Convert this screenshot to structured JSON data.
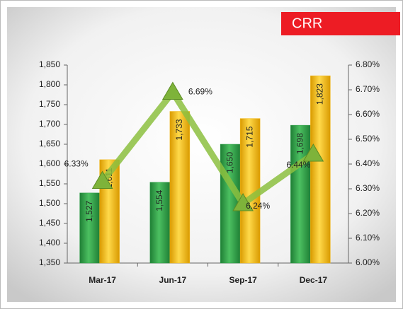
{
  "chart_data": {
    "type": "bar",
    "title": "CRR",
    "categories": [
      "Mar-17",
      "Jun-17",
      "Sep-17",
      "Dec-17"
    ],
    "series": [
      {
        "color": "#2e9e48",
        "values": [
          1527,
          1554,
          1650,
          1698
        ],
        "value_labels": [
          "1,527",
          "1,554",
          "1,650",
          "1,698"
        ]
      },
      {
        "color": "#f3b81a",
        "values": [
          1611,
          1733,
          1715,
          1823
        ],
        "value_labels": [
          "1,611",
          "1,733",
          "1,715",
          "1,823"
        ]
      },
      {
        "type": "line",
        "axis": "y2",
        "color": "#8cbf3f",
        "values": [
          6.33,
          6.69,
          6.24,
          6.44
        ],
        "value_labels": [
          "6.33%",
          "6.69%",
          "6.24%",
          "6.44%"
        ]
      }
    ],
    "ylim": [
      1350,
      1850
    ],
    "yticks": [
      {
        "value": 1350,
        "label": "1,350"
      },
      {
        "value": 1400,
        "label": "1,400"
      },
      {
        "value": 1450,
        "label": "1,450"
      },
      {
        "value": 1500,
        "label": "1,500"
      },
      {
        "value": 1550,
        "label": "1,550"
      },
      {
        "value": 1600,
        "label": "1,600"
      },
      {
        "value": 1650,
        "label": "1,650"
      },
      {
        "value": 1700,
        "label": "1,700"
      },
      {
        "value": 1750,
        "label": "1,750"
      },
      {
        "value": 1800,
        "label": "1,800"
      },
      {
        "value": 1850,
        "label": "1,850"
      }
    ],
    "y2lim": [
      6.0,
      6.8
    ],
    "y2ticks": [
      {
        "value": 6.0,
        "label": "6.00%"
      },
      {
        "value": 6.1,
        "label": "6.10%"
      },
      {
        "value": 6.2,
        "label": "6.20%"
      },
      {
        "value": 6.3,
        "label": "6.30%"
      },
      {
        "value": 6.4,
        "label": "6.40%"
      },
      {
        "value": 6.5,
        "label": "6.50%"
      },
      {
        "value": 6.6,
        "label": "6.60%"
      },
      {
        "value": 6.7,
        "label": "6.70%"
      },
      {
        "value": 6.8,
        "label": "6.80%"
      }
    ]
  }
}
